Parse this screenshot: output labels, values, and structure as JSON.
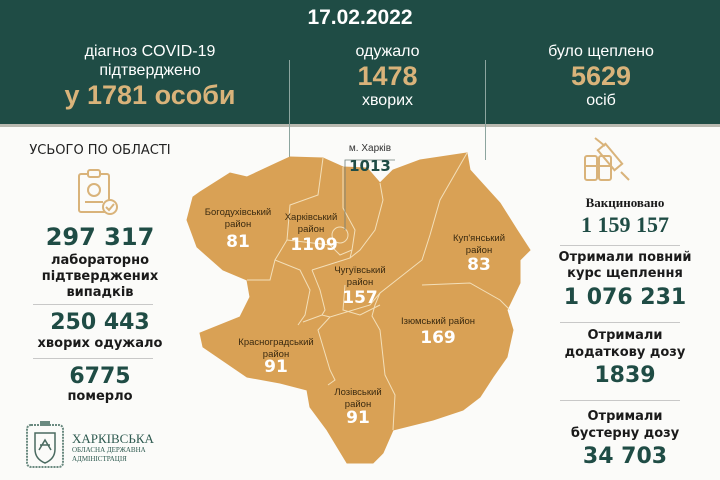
{
  "header": {
    "date": "17.02.2022",
    "diagnosed": {
      "line1": "діагноз COVID-19",
      "line2": "підтверджено",
      "value": "у 1781 особи"
    },
    "recovered": {
      "label": "одужало",
      "value": "1478",
      "unit": "хворих"
    },
    "vaccinated": {
      "label": "було щеплено",
      "value": "5629",
      "unit": "осіб"
    }
  },
  "left": {
    "title": "УСЬОГО ПО ОБЛАСТІ",
    "icon": "clipboard-virus-check-icon",
    "confirmed": {
      "value": "297 317",
      "line1": "лабораторно",
      "line2": "підтверджених",
      "line3": "випадків"
    },
    "recovered": {
      "value": "250 443",
      "label": "хворих одужало"
    },
    "deaths": {
      "value": "6775",
      "label": "померло"
    }
  },
  "map": {
    "fill": "#d9a155",
    "city": {
      "label": "м. Харків",
      "value": "1013"
    },
    "districts": [
      {
        "name1": "Богодухівський",
        "name2": "район",
        "value": "81"
      },
      {
        "name1": "Харківський",
        "name2": "район",
        "value": "1109"
      },
      {
        "name1": "Чугуївський",
        "name2": "район",
        "value": "157"
      },
      {
        "name1": "Куп'янський",
        "name2": "район",
        "value": "83"
      },
      {
        "name1": "Ізюмський район",
        "name2": "",
        "value": "169"
      },
      {
        "name1": "Красноградський",
        "name2": "район",
        "value": "91"
      },
      {
        "name1": "Лозівський",
        "name2": "район",
        "value": "91"
      }
    ]
  },
  "right": {
    "icon": "vaccine-syringe-icon",
    "vaccinated": {
      "label": "Вакциновано",
      "value": "1 159 157"
    },
    "full": {
      "line1": "Отримали повний",
      "line2": "курс щеплення",
      "value": "1 076 231"
    },
    "additional": {
      "line1": "Отримали",
      "line2": "додаткову дозу",
      "value": "1839"
    },
    "booster": {
      "line1": "Отримали",
      "line2": "бустерну дозу",
      "value": "34 703"
    }
  },
  "logo": {
    "line1": "ХАРКІВСЬКА",
    "line2": "ОБЛАСНА ДЕРЖАВНА",
    "line3": "АДМІНІСТРАЦІЯ"
  },
  "colors": {
    "header": "#1f4c45",
    "gold": "#d9b37a",
    "map": "#d9a155",
    "number": "#1f4c45"
  }
}
